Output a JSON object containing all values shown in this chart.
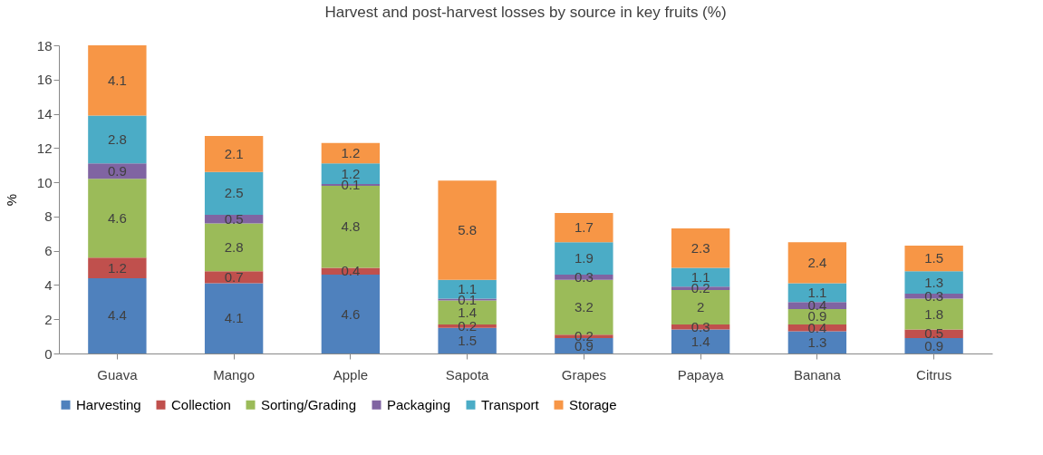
{
  "chart_data": {
    "type": "bar",
    "title": "Harvest and post-harvest losses by source in key fruits (%)",
    "ylabel": "%",
    "categories": [
      "Guava",
      "Mango",
      "Apple",
      "Sapota",
      "Grapes",
      "Papaya",
      "Banana",
      "Citrus"
    ],
    "stacked": true,
    "data_labels": true,
    "legend": "bottom",
    "grid": false,
    "ylim": [
      0,
      18
    ],
    "yticks": [
      0,
      2,
      4,
      6,
      8,
      10,
      12,
      14,
      16,
      18
    ],
    "series": [
      {
        "name": "Harvesting",
        "color": "#4f81bd",
        "values": [
          4.4,
          4.1,
          4.6,
          1.5,
          0.9,
          1.4,
          1.3,
          0.9
        ]
      },
      {
        "name": "Collection",
        "color": "#c0504d",
        "values": [
          1.2,
          0.7,
          0.4,
          0.2,
          0.2,
          0.3,
          0.4,
          0.5
        ]
      },
      {
        "name": "Sorting/Grading",
        "color": "#9bbb59",
        "values": [
          4.6,
          2.8,
          4.8,
          1.4,
          3.2,
          2,
          0.9,
          1.8
        ]
      },
      {
        "name": "Packaging",
        "color": "#8064a2",
        "values": [
          0.9,
          0.5,
          0.1,
          0.1,
          0.3,
          0.2,
          0.4,
          0.3
        ]
      },
      {
        "name": "Transport",
        "color": "#4bacc6",
        "values": [
          2.8,
          2.5,
          1.2,
          1.1,
          1.9,
          1.1,
          1.1,
          1.3
        ]
      },
      {
        "name": "Storage",
        "color": "#f79646",
        "values": [
          4.1,
          2.1,
          1.2,
          5.8,
          1.7,
          2.3,
          2.4,
          1.5
        ]
      }
    ]
  }
}
